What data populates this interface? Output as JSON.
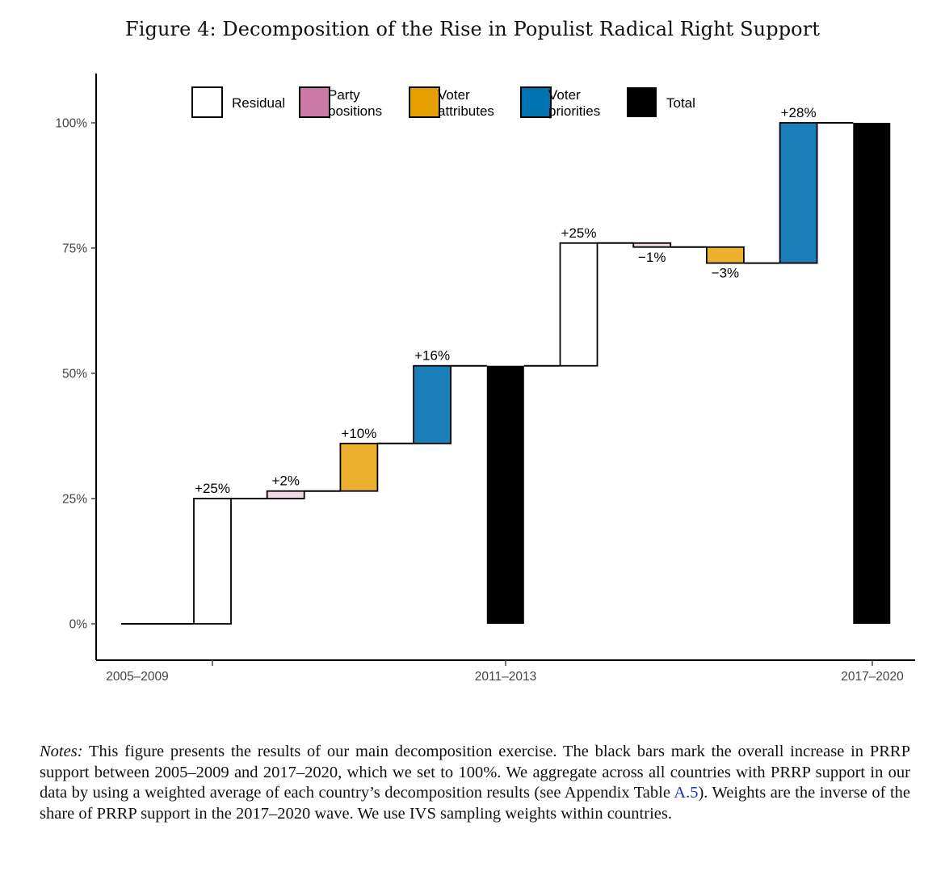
{
  "figure_title": "Figure 4: Decomposition of the Rise in Populist Radical Right Support",
  "colors": {
    "Residual": "#ffffff",
    "Party positions": "#cc79a7",
    "Voter attributes": "#e69f00",
    "Voter priorities": "#0072b2",
    "Total": "#000000"
  },
  "chart_data": {
    "type": "waterfall",
    "title": "",
    "xlabel": "",
    "ylabel": "",
    "ylim": [
      -7,
      110
    ],
    "y_ticks": [
      0,
      25,
      50,
      75,
      100
    ],
    "y_tick_labels": [
      "0%",
      "25%",
      "50%",
      "75%",
      "100%"
    ],
    "x_tick_labels": [
      "2005–2009",
      "2011–2013",
      "2017–2020"
    ],
    "legend": {
      "position": "top",
      "entries": [
        {
          "key": "Residual",
          "label": [
            "Residual"
          ]
        },
        {
          "key": "Party positions",
          "label": [
            "Party",
            "positions"
          ]
        },
        {
          "key": "Voter attributes",
          "label": [
            "Voter",
            "attributes"
          ]
        },
        {
          "key": "Voter priorities",
          "label": [
            "Voter",
            "priorities"
          ]
        },
        {
          "key": "Total",
          "label": [
            "Total"
          ]
        }
      ]
    },
    "steps": [
      {
        "component": "Residual",
        "start": 0,
        "end": 25,
        "label": "+25%"
      },
      {
        "component": "Party positions",
        "start": 25,
        "end": 26.5,
        "label": "+2%"
      },
      {
        "component": "Voter attributes",
        "start": 26.5,
        "end": 36,
        "label": "+10%"
      },
      {
        "component": "Voter priorities",
        "start": 36,
        "end": 51.5,
        "label": "+16%"
      },
      {
        "component": "Total",
        "start": 0,
        "end": 51.5,
        "label": ""
      },
      {
        "component": "Residual",
        "start": 51.5,
        "end": 76,
        "label": "+25%"
      },
      {
        "component": "Party positions",
        "start": 76,
        "end": 75.2,
        "label": "−1%"
      },
      {
        "component": "Voter attributes",
        "start": 75.2,
        "end": 72,
        "label": "−3%"
      },
      {
        "component": "Voter priorities",
        "start": 72,
        "end": 100,
        "label": "+28%"
      },
      {
        "component": "Total",
        "start": 0,
        "end": 100,
        "label": ""
      }
    ]
  },
  "notes": {
    "lead": "Notes:",
    "text_before_link": " This figure presents the results of our main decomposition exercise. The black bars mark the overall increase in PRRP support between 2005–2009 and 2017–2020, which we set to 100%. We aggregate across all countries with PRRP support in our data by using a weighted average of each country’s decomposition results (see Appendix Table ",
    "link_text": "A.5",
    "text_after_link": "). Weights are the inverse of the share of PRRP support in the 2017–2020 wave. We use IVS sampling weights within countries."
  }
}
